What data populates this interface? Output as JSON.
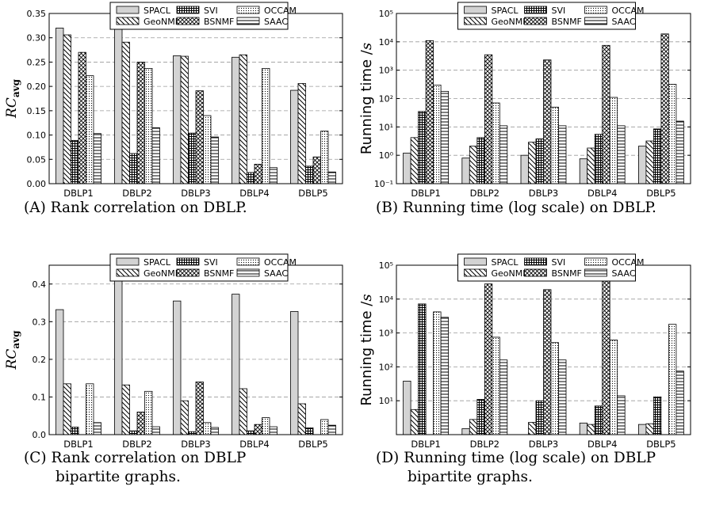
{
  "legend_names": [
    "SPACL",
    "GeoNMF",
    "SVI",
    "BSNMF",
    "OCCAM",
    "SAAC"
  ],
  "chart_data": [
    {
      "type": "bar",
      "caption": [
        "(A) Rank correlation on DBLP."
      ],
      "ylabel": "RC",
      "ylabel_sub": "avg",
      "scale": "linear",
      "ylim": [
        0,
        0.35
      ],
      "yticks": [
        "0.00",
        "0.05",
        "0.10",
        "0.15",
        "0.20",
        "0.25",
        "0.30",
        "0.35"
      ],
      "ytick_values": [
        0,
        0.05,
        0.1,
        0.15,
        0.2,
        0.25,
        0.3,
        0.35
      ],
      "grid": true,
      "legend": "top",
      "categories": [
        "DBLP1",
        "DBLP2",
        "DBLP3",
        "DBLP4",
        "DBLP5"
      ],
      "series": [
        {
          "name": "SPACL",
          "values": [
            0.32,
            0.32,
            0.263,
            0.26,
            0.192
          ]
        },
        {
          "name": "GeoNMF",
          "values": [
            0.306,
            0.291,
            0.262,
            0.265,
            0.206
          ]
        },
        {
          "name": "SVI",
          "values": [
            0.089,
            0.062,
            0.104,
            0.023,
            0.036
          ]
        },
        {
          "name": "BSNMF",
          "values": [
            0.27,
            0.25,
            0.191,
            0.04,
            0.055
          ]
        },
        {
          "name": "OCCAM",
          "values": [
            0.222,
            0.237,
            0.14,
            0.237,
            0.108
          ]
        },
        {
          "name": "SAAC",
          "values": [
            0.103,
            0.115,
            0.096,
            0.033,
            0.024
          ]
        }
      ]
    },
    {
      "type": "bar",
      "caption": [
        "(B) Running time (log scale) on DBLP."
      ],
      "ylabel": "Running time /",
      "ylabel_unit": "s",
      "scale": "log",
      "ylim": [
        0.1,
        100000
      ],
      "yticks": [
        "10⁻¹",
        "10⁰",
        "10¹",
        "10²",
        "10³",
        "10⁴",
        "10⁵"
      ],
      "ytick_values": [
        0.1,
        1,
        10,
        100,
        1000,
        10000,
        100000
      ],
      "grid": true,
      "legend": "top",
      "categories": [
        "DBLP1",
        "DBLP2",
        "DBLP3",
        "DBLP4",
        "DBLP5"
      ],
      "series": [
        {
          "name": "SPACL",
          "values": [
            1.2,
            0.8,
            1.0,
            0.75,
            2.1
          ]
        },
        {
          "name": "GeoNMF",
          "values": [
            4.2,
            2.1,
            2.9,
            1.8,
            3.2
          ]
        },
        {
          "name": "SVI",
          "values": [
            35,
            4.2,
            3.8,
            5.5,
            8.5
          ]
        },
        {
          "name": "BSNMF",
          "values": [
            11000,
            3500,
            2300,
            7500,
            19000
          ]
        },
        {
          "name": "OCCAM",
          "values": [
            300,
            70,
            50,
            110,
            320
          ]
        },
        {
          "name": "SAAC",
          "values": [
            180,
            11,
            11,
            11,
            16
          ]
        }
      ]
    },
    {
      "type": "bar",
      "caption": [
        "(C) Rank correlation on DBLP",
        "bipartite graphs."
      ],
      "ylabel": "RC",
      "ylabel_sub": "avg",
      "scale": "linear",
      "ylim": [
        0,
        0.45
      ],
      "yticks": [
        "0.0",
        "0.1",
        "0.2",
        "0.3",
        "0.4"
      ],
      "ytick_values": [
        0,
        0.1,
        0.2,
        0.3,
        0.4
      ],
      "grid": true,
      "legend": "top",
      "categories": [
        "DBLP1",
        "DBLP2",
        "DBLP3",
        "DBLP4",
        "DBLP5"
      ],
      "series": [
        {
          "name": "SPACL",
          "values": [
            0.332,
            0.424,
            0.355,
            0.373,
            0.327
          ]
        },
        {
          "name": "GeoNMF",
          "values": [
            0.135,
            0.132,
            0.09,
            0.122,
            0.082
          ]
        },
        {
          "name": "SVI",
          "values": [
            0.02,
            0.01,
            0.008,
            0.01,
            0.018
          ]
        },
        {
          "name": "BSNMF",
          "values": [
            0.0,
            0.06,
            0.14,
            0.027,
            0.0
          ]
        },
        {
          "name": "OCCAM",
          "values": [
            0.135,
            0.115,
            0.032,
            0.045,
            0.04
          ]
        },
        {
          "name": "SAAC",
          "values": [
            0.032,
            0.021,
            0.019,
            0.021,
            0.025
          ]
        }
      ]
    },
    {
      "type": "bar",
      "caption": [
        "(D) Running time (log scale) on DBLP",
        "bipartite graphs."
      ],
      "ylabel": "Running time /",
      "ylabel_unit": "s",
      "scale": "log",
      "ylim": [
        1,
        100000
      ],
      "yticks": [
        "10¹",
        "10²",
        "10³",
        "10⁴",
        "10⁵"
      ],
      "ytick_values": [
        10,
        100,
        1000,
        10000,
        100000
      ],
      "grid": true,
      "legend": "top",
      "categories": [
        "DBLP1",
        "DBLP2",
        "DBLP3",
        "DBLP4",
        "DBLP5"
      ],
      "series": [
        {
          "name": "SPACL",
          "values": [
            38,
            1.5,
            1.0,
            2.2,
            2.0
          ]
        },
        {
          "name": "GeoNMF",
          "values": [
            5.5,
            2.8,
            2.3,
            2.0,
            2.1
          ]
        },
        {
          "name": "SVI",
          "values": [
            7200,
            11,
            10,
            7,
            13
          ]
        },
        {
          "name": "BSNMF",
          "values": [
            1.0,
            28000,
            19000,
            34000,
            1.0
          ]
        },
        {
          "name": "OCCAM",
          "values": [
            4200,
            750,
            520,
            620,
            1800
          ]
        },
        {
          "name": "SAAC",
          "values": [
            2900,
            160,
            160,
            14,
            75
          ]
        }
      ]
    }
  ]
}
